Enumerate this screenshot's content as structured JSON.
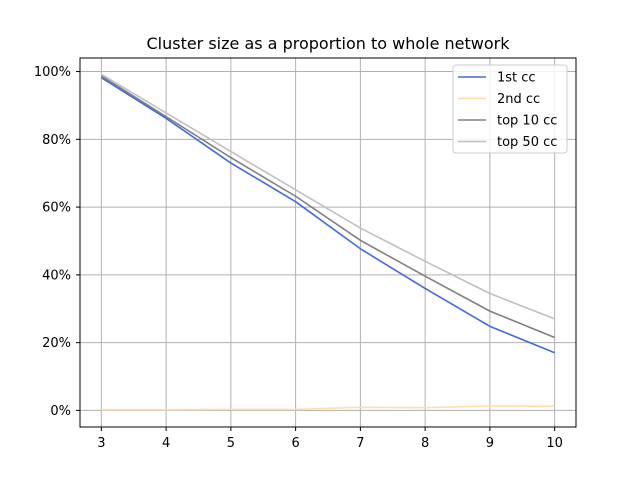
{
  "chart_data": {
    "type": "line",
    "title": "Cluster size as a proportion to whole network",
    "xlabel": "",
    "ylabel": "",
    "x": [
      3,
      4,
      5,
      6,
      7,
      8,
      9,
      10
    ],
    "x_ticks": [
      "3",
      "4",
      "5",
      "6",
      "7",
      "8",
      "9",
      "10"
    ],
    "y_ticks": [
      0,
      20,
      40,
      60,
      80,
      100
    ],
    "y_tick_labels": [
      "0%",
      "20%",
      "40%",
      "60%",
      "80%",
      "100%"
    ],
    "xlim": [
      2.67,
      10.33
    ],
    "ylim": [
      -4.9,
      104
    ],
    "grid": true,
    "legend_position": "top-right",
    "series": [
      {
        "name": "1st cc",
        "color": "#4169e1",
        "values": [
          98.2,
          86.2,
          73.0,
          61.6,
          47.7,
          36.0,
          24.8,
          17.0
        ]
      },
      {
        "name": "2nd cc",
        "color": "#ffdead",
        "values": [
          0.2,
          0.2,
          0.3,
          0.3,
          0.9,
          0.8,
          1.3,
          1.2
        ]
      },
      {
        "name": "top 10 cc",
        "color": "#808080",
        "values": [
          98.7,
          86.7,
          74.6,
          63.2,
          50.2,
          39.6,
          29.3,
          21.5
        ]
      },
      {
        "name": "top 50 cc",
        "color": "#c0c0c0",
        "values": [
          99.2,
          87.8,
          76.4,
          65.1,
          53.8,
          44.0,
          34.5,
          27.0
        ]
      }
    ]
  }
}
